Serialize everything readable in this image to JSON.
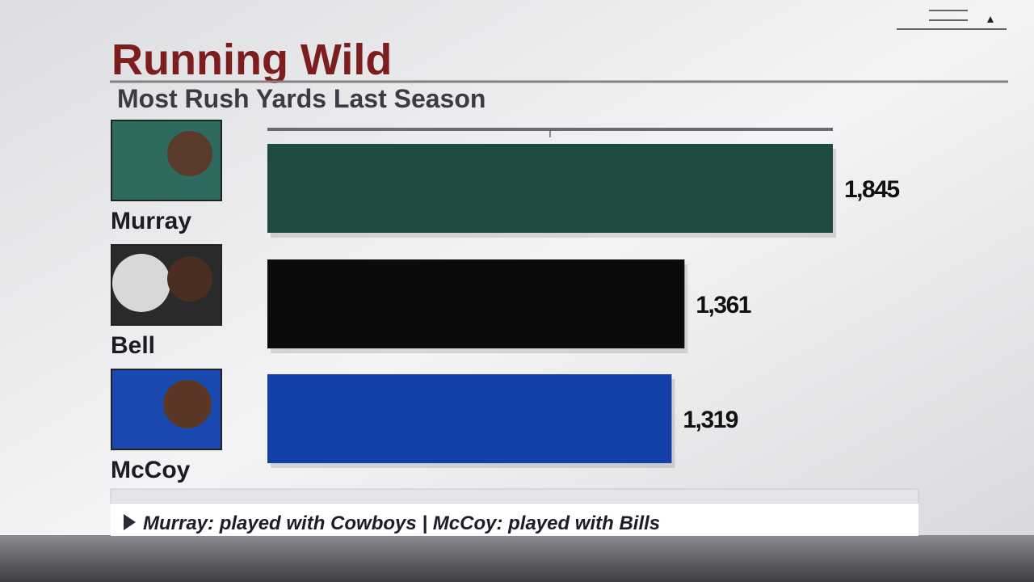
{
  "chart_data": {
    "type": "bar",
    "orientation": "horizontal",
    "title": "Running Wild",
    "subtitle": "Most Rush Yards Last Season",
    "categories": [
      "Murray",
      "Bell",
      "McCoy"
    ],
    "values": [
      1845,
      1361,
      1319
    ],
    "value_labels": [
      "1,845",
      "1,361",
      "1,319"
    ],
    "colors": [
      "#1e4a42",
      "#0b0b0b",
      "#1340a6"
    ],
    "xlim": [
      0,
      1845
    ],
    "footnote": "Murray: played with Cowboys | McCoy: played with Bills"
  }
}
